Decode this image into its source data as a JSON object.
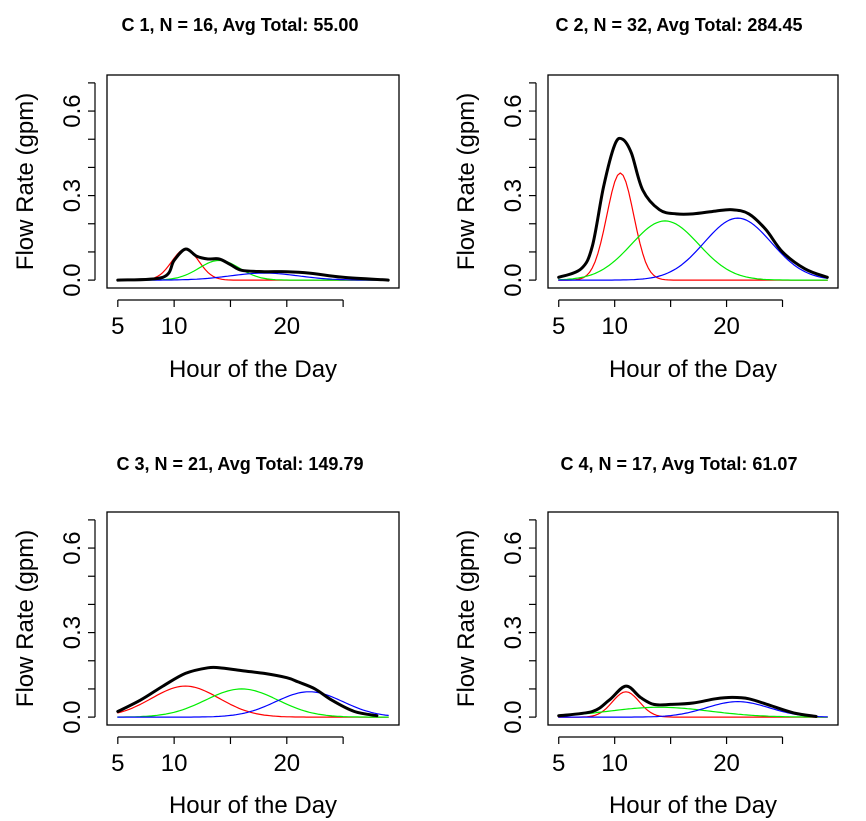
{
  "chart_data": [
    {
      "type": "line",
      "title": "C  1, N =  16, Avg Total: 55.00",
      "xlabel": "Hour of the Day",
      "ylabel": "Flow Rate (gpm)",
      "xlim": [
        5,
        29
      ],
      "ylim": [
        0,
        0.7
      ],
      "x_ticks": [
        "5",
        "10",
        "20"
      ],
      "y_ticks": [
        "0.0",
        "0.3",
        "0.6"
      ],
      "series": [
        {
          "color": "#ff0000",
          "kind": "component",
          "peak_hour": 11,
          "peak_value": 0.11,
          "sd_hours": 1.2
        },
        {
          "color": "#00ee00",
          "kind": "component",
          "peak_hour": 14,
          "peak_value": 0.07,
          "sd_hours": 1.8
        },
        {
          "color": "#0000ff",
          "kind": "component",
          "peak_hour": 18,
          "peak_value": 0.025,
          "sd_hours": 3.0
        },
        {
          "color": "#000000",
          "kind": "total",
          "points": [
            [
              5,
              0.0
            ],
            [
              9,
              0.01
            ],
            [
              10,
              0.07
            ],
            [
              11,
              0.11
            ],
            [
              12,
              0.085
            ],
            [
              13,
              0.075
            ],
            [
              14,
              0.075
            ],
            [
              15,
              0.055
            ],
            [
              16,
              0.035
            ],
            [
              18,
              0.03
            ],
            [
              20,
              0.03
            ],
            [
              22,
              0.025
            ],
            [
              25,
              0.01
            ],
            [
              29,
              0.0
            ]
          ]
        }
      ]
    },
    {
      "type": "line",
      "title": "C  2, N =  32, Avg Total: 284.45",
      "xlabel": "Hour of the Day",
      "ylabel": "Flow Rate (gpm)",
      "xlim": [
        5,
        29
      ],
      "ylim": [
        0,
        0.7
      ],
      "x_ticks": [
        "5",
        "10",
        "20"
      ],
      "y_ticks": [
        "0.0",
        "0.3",
        "0.6"
      ],
      "series": [
        {
          "color": "#ff0000",
          "kind": "component",
          "peak_hour": 10.5,
          "peak_value": 0.38,
          "sd_hours": 1.2
        },
        {
          "color": "#00ee00",
          "kind": "component",
          "peak_hour": 14.5,
          "peak_value": 0.21,
          "sd_hours": 3.0
        },
        {
          "color": "#0000ff",
          "kind": "component",
          "peak_hour": 21,
          "peak_value": 0.22,
          "sd_hours": 3.0
        },
        {
          "color": "#000000",
          "kind": "total",
          "points": [
            [
              5,
              0.01
            ],
            [
              7,
              0.04
            ],
            [
              8,
              0.12
            ],
            [
              9,
              0.33
            ],
            [
              10,
              0.48
            ],
            [
              10.7,
              0.5
            ],
            [
              11.5,
              0.45
            ],
            [
              12.5,
              0.32
            ],
            [
              14,
              0.25
            ],
            [
              15.5,
              0.235
            ],
            [
              17,
              0.235
            ],
            [
              19,
              0.245
            ],
            [
              20.5,
              0.25
            ],
            [
              22,
              0.235
            ],
            [
              23.5,
              0.18
            ],
            [
              25,
              0.1
            ],
            [
              27,
              0.04
            ],
            [
              29,
              0.01
            ]
          ]
        }
      ]
    },
    {
      "type": "line",
      "title": "C  3, N =  21, Avg Total: 149.79",
      "xlabel": "Hour of the Day",
      "ylabel": "Flow Rate (gpm)",
      "xlim": [
        5,
        29
      ],
      "ylim": [
        0,
        0.7
      ],
      "x_ticks": [
        "5",
        "10",
        "20"
      ],
      "y_ticks": [
        "0.0",
        "0.3",
        "0.6"
      ],
      "series": [
        {
          "color": "#ff0000",
          "kind": "component",
          "peak_hour": 11,
          "peak_value": 0.11,
          "sd_hours": 3.0
        },
        {
          "color": "#00ee00",
          "kind": "component",
          "peak_hour": 16,
          "peak_value": 0.1,
          "sd_hours": 3.2
        },
        {
          "color": "#0000ff",
          "kind": "component",
          "peak_hour": 22,
          "peak_value": 0.09,
          "sd_hours": 3.0
        },
        {
          "color": "#000000",
          "kind": "total",
          "points": [
            [
              5,
              0.02
            ],
            [
              7,
              0.06
            ],
            [
              9,
              0.11
            ],
            [
              11,
              0.155
            ],
            [
              13,
              0.175
            ],
            [
              14,
              0.175
            ],
            [
              16,
              0.165
            ],
            [
              18,
              0.155
            ],
            [
              20,
              0.14
            ],
            [
              21,
              0.125
            ],
            [
              22.5,
              0.1
            ],
            [
              24,
              0.06
            ],
            [
              26,
              0.02
            ],
            [
              28,
              0.005
            ]
          ]
        }
      ]
    },
    {
      "type": "line",
      "title": "C  4, N =  17, Avg Total: 61.07",
      "xlabel": "Hour of the Day",
      "ylabel": "Flow Rate (gpm)",
      "xlim": [
        5,
        29
      ],
      "ylim": [
        0,
        0.7
      ],
      "x_ticks": [
        "5",
        "10",
        "20"
      ],
      "y_ticks": [
        "0.0",
        "0.3",
        "0.6"
      ],
      "series": [
        {
          "color": "#ff0000",
          "kind": "component",
          "peak_hour": 11,
          "peak_value": 0.09,
          "sd_hours": 1.2
        },
        {
          "color": "#00ee00",
          "kind": "component",
          "peak_hour": 14,
          "peak_value": 0.035,
          "sd_hours": 4.5
        },
        {
          "color": "#0000ff",
          "kind": "component",
          "peak_hour": 21,
          "peak_value": 0.055,
          "sd_hours": 2.8
        },
        {
          "color": "#000000",
          "kind": "total",
          "points": [
            [
              5,
              0.005
            ],
            [
              8,
              0.02
            ],
            [
              9.5,
              0.06
            ],
            [
              11,
              0.11
            ],
            [
              12.3,
              0.07
            ],
            [
              13.5,
              0.045
            ],
            [
              15,
              0.045
            ],
            [
              17,
              0.05
            ],
            [
              19,
              0.065
            ],
            [
              20.5,
              0.07
            ],
            [
              22,
              0.065
            ],
            [
              24,
              0.04
            ],
            [
              26,
              0.015
            ],
            [
              28,
              0.002
            ]
          ]
        }
      ]
    }
  ]
}
